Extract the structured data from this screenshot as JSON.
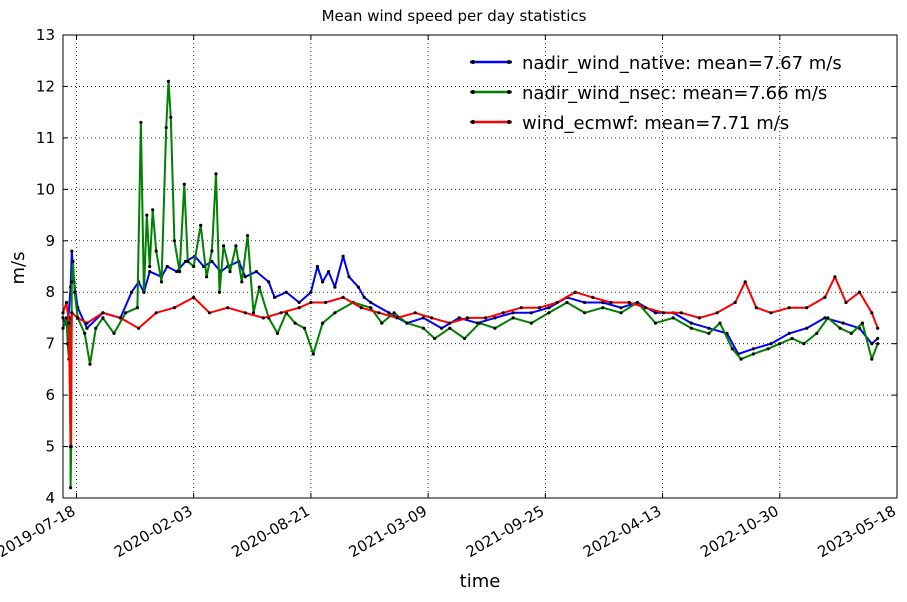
{
  "chart_data": {
    "type": "line",
    "title": "Mean wind speed per day statistics",
    "xlabel": "time",
    "ylabel": "m/s",
    "ylim": [
      4,
      13
    ],
    "xlim": [
      "2019-06-25",
      "2023-05-18"
    ],
    "yticks": [
      "4",
      "5",
      "6",
      "7",
      "8",
      "9",
      "10",
      "11",
      "12",
      "13"
    ],
    "xticks": [
      "2019-07-18",
      "2020-02-03",
      "2020-08-21",
      "2021-03-09",
      "2021-09-25",
      "2022-04-13",
      "2022-10-30",
      "2023-05-18"
    ],
    "grid": true,
    "legend": "top-right",
    "series": [
      {
        "name": "nadir_wind_native: mean=7.67 m/s",
        "color": "#0000ff",
        "points": [
          [
            "2019-06-25",
            7.5
          ],
          [
            "2019-07-03",
            7.3
          ],
          [
            "2019-07-08",
            8.1
          ],
          [
            "2019-07-10",
            8.8
          ],
          [
            "2019-07-14",
            8.2
          ],
          [
            "2019-07-20",
            7.7
          ],
          [
            "2019-08-05",
            7.3
          ],
          [
            "2019-09-01",
            7.6
          ],
          [
            "2019-10-01",
            7.5
          ],
          [
            "2019-10-20",
            8.0
          ],
          [
            "2019-11-01",
            8.2
          ],
          [
            "2019-11-10",
            8.0
          ],
          [
            "2019-11-20",
            8.4
          ],
          [
            "2019-12-10",
            8.3
          ],
          [
            "2019-12-20",
            8.5
          ],
          [
            "2020-01-05",
            8.4
          ],
          [
            "2020-01-20",
            8.6
          ],
          [
            "2020-02-05",
            8.7
          ],
          [
            "2020-02-20",
            8.5
          ],
          [
            "2020-03-05",
            8.6
          ],
          [
            "2020-03-20",
            8.4
          ],
          [
            "2020-04-01",
            8.5
          ],
          [
            "2020-04-20",
            8.6
          ],
          [
            "2020-05-01",
            8.3
          ],
          [
            "2020-05-20",
            8.4
          ],
          [
            "2020-06-10",
            8.2
          ],
          [
            "2020-06-20",
            7.9
          ],
          [
            "2020-07-10",
            8.0
          ],
          [
            "2020-08-01",
            7.8
          ],
          [
            "2020-08-21",
            8.0
          ],
          [
            "2020-09-01",
            8.5
          ],
          [
            "2020-09-10",
            8.2
          ],
          [
            "2020-09-20",
            8.4
          ],
          [
            "2020-10-01",
            8.1
          ],
          [
            "2020-10-15",
            8.7
          ],
          [
            "2020-10-25",
            8.3
          ],
          [
            "2020-11-10",
            8.1
          ],
          [
            "2020-11-20",
            7.9
          ],
          [
            "2020-12-01",
            7.8
          ],
          [
            "2021-01-01",
            7.6
          ],
          [
            "2021-02-01",
            7.4
          ],
          [
            "2021-03-01",
            7.5
          ],
          [
            "2021-04-01",
            7.3
          ],
          [
            "2021-05-01",
            7.5
          ],
          [
            "2021-06-01",
            7.4
          ],
          [
            "2021-07-01",
            7.5
          ],
          [
            "2021-08-01",
            7.6
          ],
          [
            "2021-09-01",
            7.6
          ],
          [
            "2021-10-01",
            7.7
          ],
          [
            "2021-11-01",
            7.9
          ],
          [
            "2021-12-01",
            7.8
          ],
          [
            "2022-01-01",
            7.8
          ],
          [
            "2022-02-01",
            7.7
          ],
          [
            "2022-03-01",
            7.8
          ],
          [
            "2022-04-01",
            7.6
          ],
          [
            "2022-05-01",
            7.6
          ],
          [
            "2022-06-01",
            7.4
          ],
          [
            "2022-07-01",
            7.3
          ],
          [
            "2022-08-01",
            7.2
          ],
          [
            "2022-08-20",
            6.8
          ],
          [
            "2022-09-15",
            6.9
          ],
          [
            "2022-10-15",
            7.0
          ],
          [
            "2022-11-15",
            7.2
          ],
          [
            "2022-12-15",
            7.3
          ],
          [
            "2023-01-15",
            7.5
          ],
          [
            "2023-02-15",
            7.4
          ],
          [
            "2023-03-15",
            7.3
          ],
          [
            "2023-04-05",
            7.0
          ],
          [
            "2023-04-15",
            7.1
          ]
        ]
      },
      {
        "name": "nadir_wind_nsec: mean=7.66 m/s",
        "color": "#008000",
        "points": [
          [
            "2019-06-25",
            7.3
          ],
          [
            "2019-07-01",
            7.5
          ],
          [
            "2019-07-03",
            7.0
          ],
          [
            "2019-07-05",
            6.7
          ],
          [
            "2019-07-07",
            7.5
          ],
          [
            "2019-07-08",
            4.2
          ],
          [
            "2019-07-09",
            5.0
          ],
          [
            "2019-07-10",
            8.2
          ],
          [
            "2019-07-12",
            8.6
          ],
          [
            "2019-07-15",
            8.0
          ],
          [
            "2019-07-20",
            7.5
          ],
          [
            "2019-08-01",
            7.2
          ],
          [
            "2019-08-10",
            6.6
          ],
          [
            "2019-08-20",
            7.3
          ],
          [
            "2019-09-01",
            7.5
          ],
          [
            "2019-09-20",
            7.2
          ],
          [
            "2019-10-10",
            7.6
          ],
          [
            "2019-10-30",
            7.7
          ],
          [
            "2019-11-05",
            11.3
          ],
          [
            "2019-11-10",
            8.0
          ],
          [
            "2019-11-15",
            9.5
          ],
          [
            "2019-11-20",
            8.5
          ],
          [
            "2019-11-25",
            9.6
          ],
          [
            "2019-12-01",
            8.8
          ],
          [
            "2019-12-10",
            8.2
          ],
          [
            "2019-12-18",
            11.2
          ],
          [
            "2019-12-22",
            12.1
          ],
          [
            "2019-12-26",
            11.4
          ],
          [
            "2020-01-01",
            9.0
          ],
          [
            "2020-01-10",
            8.4
          ],
          [
            "2020-01-18",
            10.1
          ],
          [
            "2020-01-24",
            8.6
          ],
          [
            "2020-02-03",
            8.5
          ],
          [
            "2020-02-15",
            9.3
          ],
          [
            "2020-02-25",
            8.3
          ],
          [
            "2020-03-05",
            8.8
          ],
          [
            "2020-03-12",
            10.3
          ],
          [
            "2020-03-18",
            8.0
          ],
          [
            "2020-03-25",
            8.9
          ],
          [
            "2020-04-05",
            8.4
          ],
          [
            "2020-04-15",
            8.9
          ],
          [
            "2020-04-25",
            8.2
          ],
          [
            "2020-05-05",
            9.1
          ],
          [
            "2020-05-15",
            7.6
          ],
          [
            "2020-05-25",
            8.1
          ],
          [
            "2020-06-10",
            7.5
          ],
          [
            "2020-06-25",
            7.2
          ],
          [
            "2020-07-10",
            7.6
          ],
          [
            "2020-07-25",
            7.4
          ],
          [
            "2020-08-10",
            7.3
          ],
          [
            "2020-08-25",
            6.8
          ],
          [
            "2020-09-10",
            7.4
          ],
          [
            "2020-10-01",
            7.6
          ],
          [
            "2020-11-01",
            7.8
          ],
          [
            "2020-12-01",
            7.7
          ],
          [
            "2020-12-20",
            7.4
          ],
          [
            "2021-01-10",
            7.6
          ],
          [
            "2021-02-01",
            7.4
          ],
          [
            "2021-03-01",
            7.3
          ],
          [
            "2021-03-20",
            7.1
          ],
          [
            "2021-04-15",
            7.3
          ],
          [
            "2021-05-10",
            7.1
          ],
          [
            "2021-06-05",
            7.4
          ],
          [
            "2021-07-01",
            7.3
          ],
          [
            "2021-08-01",
            7.5
          ],
          [
            "2021-09-01",
            7.4
          ],
          [
            "2021-10-01",
            7.6
          ],
          [
            "2021-11-01",
            7.8
          ],
          [
            "2021-12-01",
            7.6
          ],
          [
            "2022-01-01",
            7.7
          ],
          [
            "2022-02-01",
            7.6
          ],
          [
            "2022-03-01",
            7.8
          ],
          [
            "2022-04-01",
            7.4
          ],
          [
            "2022-05-01",
            7.5
          ],
          [
            "2022-06-01",
            7.3
          ],
          [
            "2022-07-01",
            7.2
          ],
          [
            "2022-07-20",
            7.4
          ],
          [
            "2022-08-10",
            6.9
          ],
          [
            "2022-08-25",
            6.7
          ],
          [
            "2022-09-15",
            6.8
          ],
          [
            "2022-10-10",
            6.9
          ],
          [
            "2022-10-30",
            7.0
          ],
          [
            "2022-11-20",
            7.1
          ],
          [
            "2022-12-10",
            7.0
          ],
          [
            "2023-01-01",
            7.2
          ],
          [
            "2023-01-20",
            7.5
          ],
          [
            "2023-02-10",
            7.3
          ],
          [
            "2023-03-01",
            7.2
          ],
          [
            "2023-03-20",
            7.4
          ],
          [
            "2023-04-05",
            6.7
          ],
          [
            "2023-04-15",
            7.0
          ]
        ]
      },
      {
        "name": "wind_ecmwf: mean=7.71 m/s",
        "color": "#ff0000",
        "points": [
          [
            "2019-06-25",
            7.6
          ],
          [
            "2019-07-01",
            7.8
          ],
          [
            "2019-07-05",
            7.4
          ],
          [
            "2019-07-08",
            5.0
          ],
          [
            "2019-07-10",
            7.6
          ],
          [
            "2019-07-20",
            7.5
          ],
          [
            "2019-08-05",
            7.4
          ],
          [
            "2019-09-01",
            7.6
          ],
          [
            "2019-10-01",
            7.5
          ],
          [
            "2019-11-01",
            7.3
          ],
          [
            "2019-12-01",
            7.6
          ],
          [
            "2020-01-01",
            7.7
          ],
          [
            "2020-02-03",
            7.9
          ],
          [
            "2020-03-01",
            7.6
          ],
          [
            "2020-04-01",
            7.7
          ],
          [
            "2020-05-01",
            7.6
          ],
          [
            "2020-06-01",
            7.5
          ],
          [
            "2020-07-01",
            7.6
          ],
          [
            "2020-08-01",
            7.7
          ],
          [
            "2020-08-21",
            7.8
          ],
          [
            "2020-09-15",
            7.8
          ],
          [
            "2020-10-15",
            7.9
          ],
          [
            "2020-11-15",
            7.7
          ],
          [
            "2020-12-15",
            7.6
          ],
          [
            "2021-01-15",
            7.5
          ],
          [
            "2021-02-15",
            7.6
          ],
          [
            "2021-03-15",
            7.5
          ],
          [
            "2021-04-15",
            7.4
          ],
          [
            "2021-05-15",
            7.5
          ],
          [
            "2021-06-15",
            7.5
          ],
          [
            "2021-07-15",
            7.6
          ],
          [
            "2021-08-15",
            7.7
          ],
          [
            "2021-09-15",
            7.7
          ],
          [
            "2021-10-15",
            7.8
          ],
          [
            "2021-11-15",
            8.0
          ],
          [
            "2021-12-15",
            7.9
          ],
          [
            "2022-01-15",
            7.8
          ],
          [
            "2022-02-15",
            7.8
          ],
          [
            "2022-03-15",
            7.7
          ],
          [
            "2022-04-15",
            7.6
          ],
          [
            "2022-05-15",
            7.6
          ],
          [
            "2022-06-15",
            7.5
          ],
          [
            "2022-07-15",
            7.6
          ],
          [
            "2022-08-15",
            7.8
          ],
          [
            "2022-09-01",
            8.2
          ],
          [
            "2022-09-20",
            7.7
          ],
          [
            "2022-10-15",
            7.6
          ],
          [
            "2022-11-15",
            7.7
          ],
          [
            "2022-12-15",
            7.7
          ],
          [
            "2023-01-15",
            7.9
          ],
          [
            "2023-02-01",
            8.3
          ],
          [
            "2023-02-20",
            7.8
          ],
          [
            "2023-03-15",
            8.0
          ],
          [
            "2023-04-05",
            7.6
          ],
          [
            "2023-04-15",
            7.3
          ]
        ]
      }
    ]
  }
}
